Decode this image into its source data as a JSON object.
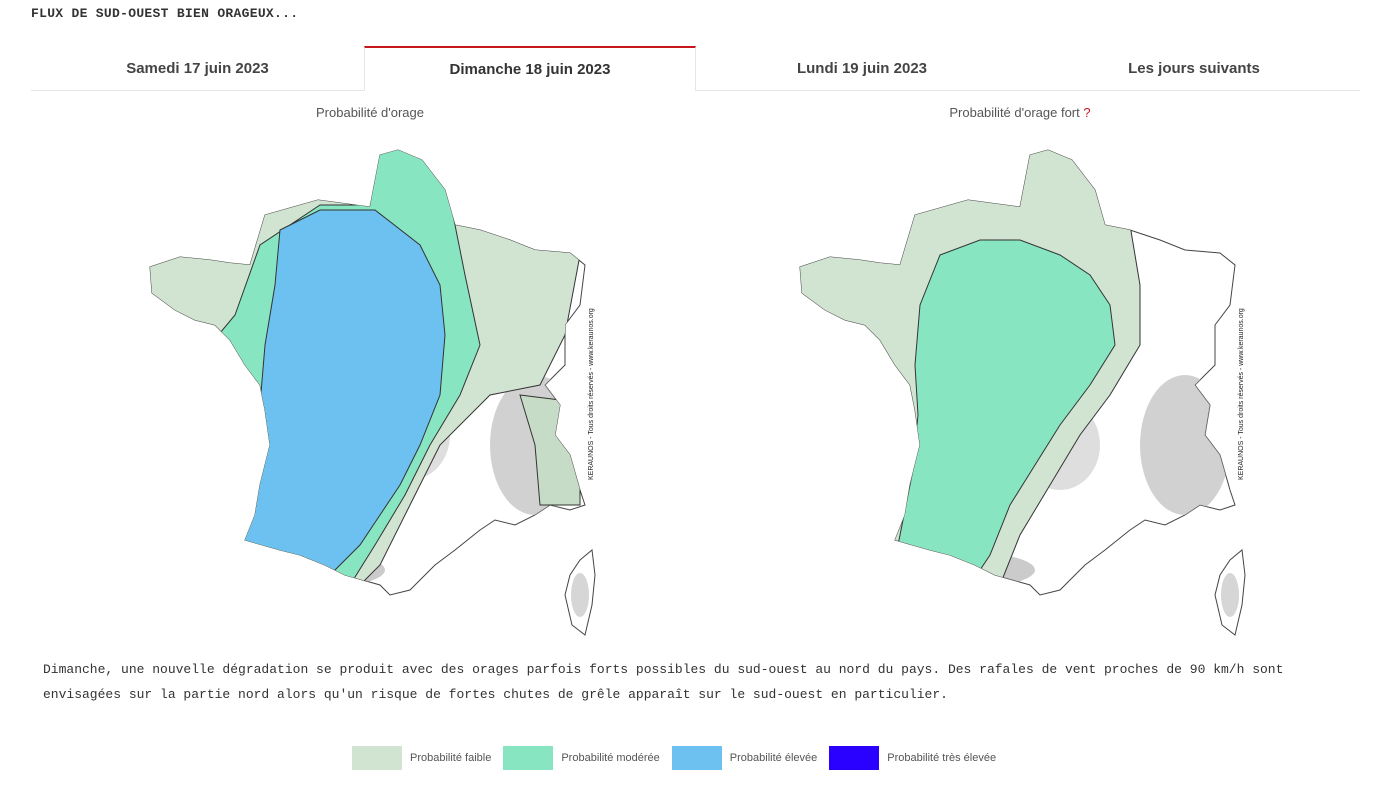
{
  "headline": "FLUX DE SUD-OUEST BIEN ORAGEUX...",
  "tabs": [
    {
      "label": "Samedi 17 juin 2023",
      "active": false
    },
    {
      "label": "Dimanche 18 juin 2023",
      "active": true
    },
    {
      "label": "Lundi 19 juin 2023",
      "active": false
    },
    {
      "label": "Les jours suivants",
      "active": false
    }
  ],
  "maps": {
    "left": {
      "title": "Probabilité d'orage",
      "credit": "KERAUNOS - Tous droits réservés - www.keraunos.org"
    },
    "right": {
      "title": "Probabilité d'orage fort",
      "help": "?",
      "credit": "KERAUNOS - Tous droits réservés - www.keraunos.org"
    }
  },
  "description": "Dimanche, une nouvelle dégradation se produit avec des orages parfois forts possibles du sud-ouest au nord du pays. Des rafales de vent proches de 90 km/h sont envisagées sur la partie nord alors qu'un risque de fortes chutes de grêle apparaît sur le sud-ouest en particulier.",
  "legend": [
    {
      "label": "Probabilité faible",
      "color": "#d1e3d1"
    },
    {
      "label": "Probabilité modérée",
      "color": "#87e6c1"
    },
    {
      "label": "Probabilité élevée",
      "color": "#6cc1f0"
    },
    {
      "label": "Probabilité très élevée",
      "color": "#2a00ff"
    }
  ],
  "colors": {
    "accent": "#c8161d",
    "relief": "#bdbdbd"
  }
}
